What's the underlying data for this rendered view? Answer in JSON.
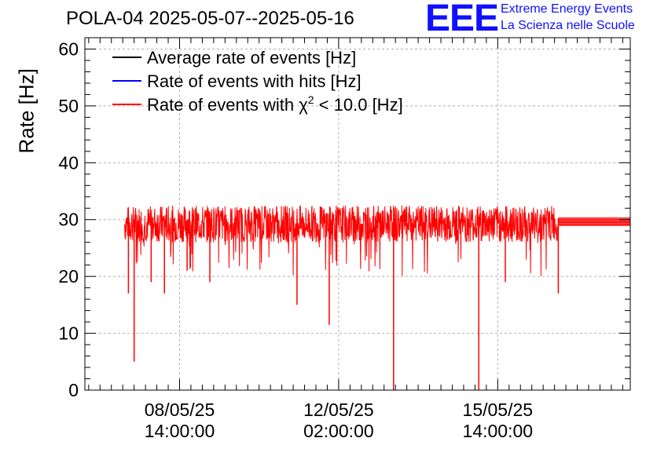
{
  "header": {
    "title": "POLA-04 2025-05-07--2025-05-16",
    "logo_text": "EEE",
    "logo_line1": "Extreme Energy Events",
    "logo_line2": "La Scienza nelle Scuole"
  },
  "colors": {
    "average": "#000000",
    "hits": "#0000ff",
    "chi2": "#ff0000",
    "grid": "#b0b0b0",
    "logo": "#1010ff"
  },
  "chart_data": {
    "type": "line",
    "title": "POLA-04 2025-05-07--2025-05-16",
    "ylabel": "Rate [Hz]",
    "xlabel": "",
    "ylim": [
      0,
      62
    ],
    "yticks": [
      0,
      10,
      20,
      30,
      40,
      50,
      60
    ],
    "xticks": [
      {
        "date": "2025-05-08 14:00",
        "label1": "08/05/25",
        "label2": "14:00:00"
      },
      {
        "date": "2025-05-12 02:00",
        "label1": "12/05/25",
        "label2": "02:00:00"
      },
      {
        "date": "2025-05-15 14:00",
        "label1": "15/05/25",
        "label2": "14:00:00"
      }
    ],
    "xlim": [
      "2025-05-06 12:00",
      "2025-05-18 12:00"
    ],
    "grid": true,
    "legend_position": "top-left",
    "legend": [
      {
        "label": "Average rate of events [Hz]",
        "color": "#000000"
      },
      {
        "label": "Rate of events with hits [Hz]",
        "color": "#0000ff"
      },
      {
        "label": "Rate of events with χ² < 10.0 [Hz]",
        "label_main": "Rate of events with χ",
        "label_sup": "2",
        "label_tail": " < 10.0 [Hz]",
        "color": "#ff0000"
      }
    ],
    "series": [
      {
        "name": "Rate of events with χ² < 10.0 [Hz]",
        "baseline": 30.0,
        "x": [
          "2025-05-07 09:00",
          "2025-05-07 09:30",
          "2025-05-07 11:00",
          "2025-05-07 12:30",
          "2025-05-07 14:00",
          "2025-05-07 18:00",
          "2025-05-07 23:00",
          "2025-05-08 02:00",
          "2025-05-08 06:00",
          "2025-05-08 09:00",
          "2025-05-08 18:00",
          "2025-05-09 00:00",
          "2025-05-09 06:00",
          "2025-05-09 12:00",
          "2025-05-09 18:00",
          "2025-05-10 00:00",
          "2025-05-10 12:00",
          "2025-05-11 00:00",
          "2025-05-11 04:00",
          "2025-05-11 12:00",
          "2025-05-11 21:00",
          "2025-05-12 00:00",
          "2025-05-12 12:00",
          "2025-05-13 00:00",
          "2025-05-13 07:00",
          "2025-05-13 07:30",
          "2025-05-13 12:00",
          "2025-05-14 00:00",
          "2025-05-14 12:00",
          "2025-05-15 00:00",
          "2025-05-15 04:00",
          "2025-05-15 12:00",
          "2025-05-15 18:00",
          "2025-05-16 00:00",
          "2025-05-16 12:00",
          "2025-05-16 22:00",
          "2025-05-17 00:00",
          "2025-05-18 12:00"
        ],
        "values": [
          29.0,
          31.0,
          17.0,
          30.5,
          5.0,
          30.0,
          19.0,
          30.5,
          17.0,
          31.0,
          21.0,
          31.5,
          19.0,
          32.0,
          30.0,
          31.0,
          30.5,
          31.5,
          15.0,
          31.0,
          11.5,
          31.5,
          30.0,
          31.0,
          0.0,
          30.5,
          30.0,
          31.0,
          30.0,
          30.5,
          0.0,
          31.0,
          19.0,
          30.5,
          30.0,
          17.0,
          29.5,
          29.5
        ],
        "noise_min": 26.0,
        "noise_max": 32.5
      }
    ]
  }
}
